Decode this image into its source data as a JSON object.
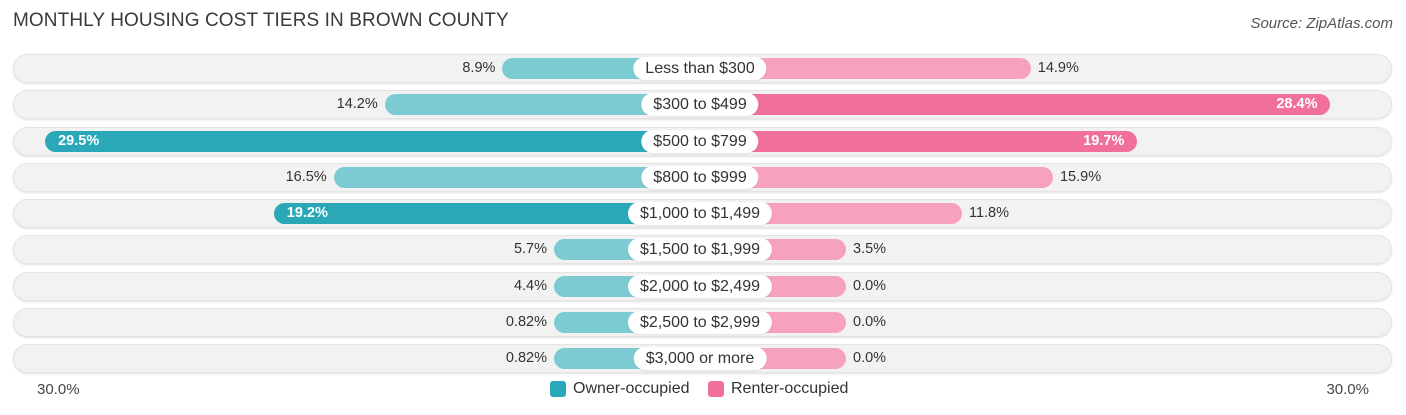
{
  "chart_data": {
    "type": "bar",
    "orientation": "diverging-horizontal",
    "title": "MONTHLY HOUSING COST TIERS IN BROWN COUNTY",
    "source": "Source: ZipAtlas.com",
    "categories": [
      "Less than $300",
      "$300 to $499",
      "$500 to $799",
      "$800 to $999",
      "$1,000 to $1,499",
      "$1,500 to $1,999",
      "$2,000 to $2,499",
      "$2,500 to $2,999",
      "$3,000 or more"
    ],
    "series": [
      {
        "name": "Owner-occupied",
        "color": "#7ccbd3",
        "strong_color": "#2aa8b8",
        "values": [
          8.9,
          14.2,
          29.5,
          16.5,
          19.2,
          5.7,
          4.4,
          0.82,
          0.82
        ],
        "labels": [
          "8.9%",
          "14.2%",
          "29.5%",
          "16.5%",
          "19.2%",
          "5.7%",
          "4.4%",
          "0.82%",
          "0.82%"
        ]
      },
      {
        "name": "Renter-occupied",
        "color": "#f7a2bd",
        "strong_color": "#f0709a",
        "values": [
          14.9,
          28.4,
          19.7,
          15.9,
          11.8,
          3.5,
          0.0,
          0.0,
          0.0
        ],
        "labels": [
          "14.9%",
          "28.4%",
          "19.7%",
          "15.9%",
          "11.8%",
          "3.5%",
          "0.0%",
          "0.0%",
          "0.0%"
        ]
      }
    ],
    "xlim": [
      -30,
      30
    ],
    "axis_left_label": "30.0%",
    "axis_right_label": "30.0%",
    "legend": [
      "Owner-occupied",
      "Renter-occupied"
    ],
    "legend_position": "bottom-center"
  }
}
